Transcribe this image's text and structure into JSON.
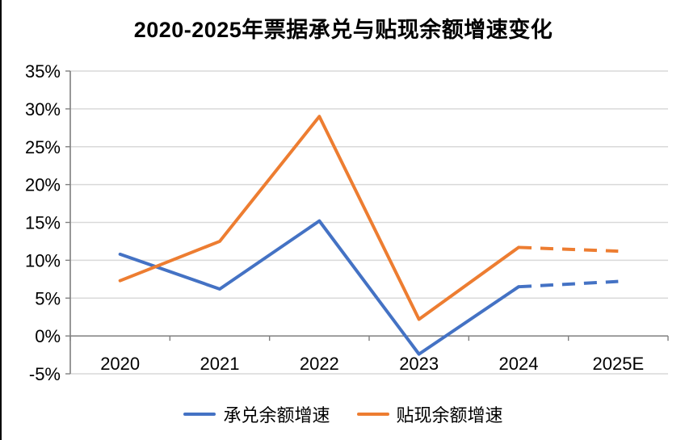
{
  "title": "2020-2025年票据承兑与贴现余额增速变化",
  "chart_data": {
    "type": "line",
    "categories": [
      "2020",
      "2021",
      "2022",
      "2023",
      "2024",
      "2025E"
    ],
    "series": [
      {
        "name": "承兑余额增速",
        "color": "#4472C4",
        "values": [
          10.8,
          6.2,
          15.2,
          -2.4,
          6.5,
          7.2
        ],
        "forecast_start_index": 4,
        "forecast_style": "dashed"
      },
      {
        "name": "贴现余额增速",
        "color": "#ED7D31",
        "values": [
          7.3,
          12.5,
          29.0,
          2.2,
          11.7,
          11.2
        ],
        "forecast_start_index": 4,
        "forecast_style": "dashed"
      }
    ],
    "xlabel": "",
    "ylabel": "",
    "ylim": [
      -5,
      35
    ],
    "ytick_step": 5,
    "ytick_labels": [
      "-5%",
      "0%",
      "5%",
      "10%",
      "15%",
      "20%",
      "25%",
      "30%",
      "35%"
    ],
    "grid": true,
    "legend_position": "bottom",
    "colors": {
      "gridline": "#D9D9D9",
      "axis": "#7F7F7F",
      "text": "#000000",
      "background": "#FFFFFF",
      "left_border": "#000000"
    }
  }
}
